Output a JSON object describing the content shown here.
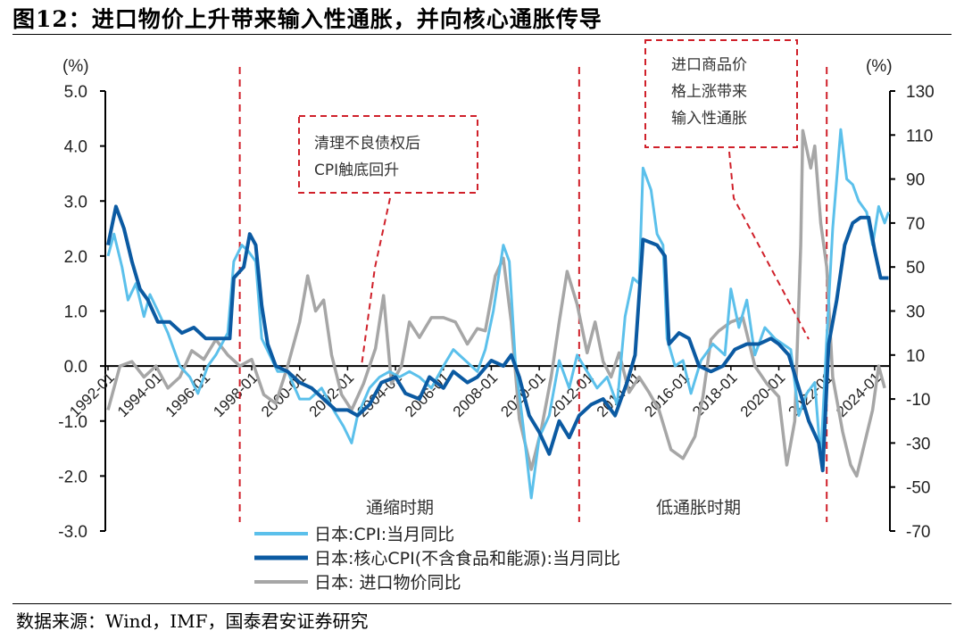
{
  "title": "图12：进口物价上升带来输入性通胀，并向核心通胀传导",
  "source": "数据来源：Wind，IMF，国泰君安证券研究",
  "chart_data": {
    "type": "line",
    "title": "图12：进口物价上升带来输入性通胀，并向核心通胀传导",
    "left_axis": {
      "unit": "(%)",
      "ylim": [
        -3.0,
        5.0
      ],
      "ticks": [
        "5.0",
        "4.0",
        "3.0",
        "2.0",
        "1.0",
        "0.0",
        "-1.0",
        "-2.0",
        "-3.0"
      ]
    },
    "right_axis": {
      "unit": "(%)",
      "ylim": [
        -70,
        130
      ],
      "ticks": [
        "130",
        "110",
        "90",
        "70",
        "50",
        "30",
        "10",
        "-10",
        "-30",
        "-50",
        "-70"
      ]
    },
    "x_ticks": [
      "1992-01",
      "1994-01",
      "1996-01",
      "1998-01",
      "2000-01",
      "2002-01",
      "2004-01",
      "2006-01",
      "2008-01",
      "2010-01",
      "2012-01",
      "2014-01",
      "2016-01",
      "2018-01",
      "2020-01",
      "2022-01",
      "2024-01"
    ],
    "grid": false,
    "legend_position": "bottom",
    "colors": {
      "cpi": "#5bc0eb",
      "core": "#0b5aa2",
      "import": "#a6a6a6",
      "annotation": "#d0202a"
    },
    "series": [
      {
        "name": "日本:CPI:当月同比",
        "axis": "left",
        "color": "#5bc0eb",
        "points": [
          [
            "1992-01",
            2.0
          ],
          [
            "1992-04",
            2.4
          ],
          [
            "1992-08",
            1.8
          ],
          [
            "1992-11",
            1.2
          ],
          [
            "1993-03",
            1.5
          ],
          [
            "1993-07",
            0.9
          ],
          [
            "1993-10",
            1.3
          ],
          [
            "1994-02",
            1.0
          ],
          [
            "1994-07",
            0.6
          ],
          [
            "1994-10",
            0.3
          ],
          [
            "1995-01",
            0.0
          ],
          [
            "1995-06",
            -0.2
          ],
          [
            "1995-10",
            -0.5
          ],
          [
            "1996-03",
            0.0
          ],
          [
            "1996-07",
            0.2
          ],
          [
            "1997-01",
            0.6
          ],
          [
            "1997-04",
            1.9
          ],
          [
            "1997-08",
            2.2
          ],
          [
            "1997-11",
            2.1
          ],
          [
            "1998-03",
            1.9
          ],
          [
            "1998-06",
            0.5
          ],
          [
            "1998-10",
            0.2
          ],
          [
            "1999-02",
            -0.1
          ],
          [
            "1999-07",
            -0.1
          ],
          [
            "2000-01",
            -0.6
          ],
          [
            "2000-06",
            -0.6
          ],
          [
            "2000-12",
            -0.4
          ],
          [
            "2001-06",
            -0.8
          ],
          [
            "2001-11",
            -1.1
          ],
          [
            "2002-03",
            -1.4
          ],
          [
            "2002-06",
            -0.9
          ],
          [
            "2002-12",
            -0.4
          ],
          [
            "2003-05",
            -0.2
          ],
          [
            "2003-10",
            -0.1
          ],
          [
            "2004-03",
            -0.2
          ],
          [
            "2004-08",
            -0.1
          ],
          [
            "2005-01",
            -0.2
          ],
          [
            "2005-07",
            -0.4
          ],
          [
            "2006-01",
            0.0
          ],
          [
            "2006-06",
            0.3
          ],
          [
            "2006-12",
            0.1
          ],
          [
            "2007-06",
            -0.1
          ],
          [
            "2007-10",
            0.3
          ],
          [
            "2008-02",
            1.0
          ],
          [
            "2008-07",
            2.2
          ],
          [
            "2008-10",
            1.9
          ],
          [
            "2009-01",
            0.1
          ],
          [
            "2009-05",
            -1.1
          ],
          [
            "2009-09",
            -2.4
          ],
          [
            "2010-01",
            -1.3
          ],
          [
            "2010-06",
            -0.9
          ],
          [
            "2010-11",
            0.1
          ],
          [
            "2011-04",
            -0.4
          ],
          [
            "2011-08",
            0.2
          ],
          [
            "2012-01",
            -0.1
          ],
          [
            "2012-06",
            -0.4
          ],
          [
            "2012-11",
            -0.2
          ],
          [
            "2013-04",
            -0.7
          ],
          [
            "2013-08",
            0.9
          ],
          [
            "2013-12",
            1.6
          ],
          [
            "2014-03",
            1.5
          ],
          [
            "2014-05",
            3.6
          ],
          [
            "2014-09",
            3.2
          ],
          [
            "2014-12",
            2.4
          ],
          [
            "2015-03",
            2.2
          ],
          [
            "2015-05",
            0.5
          ],
          [
            "2015-09",
            0.0
          ],
          [
            "2016-01",
            0.1
          ],
          [
            "2016-05",
            -0.5
          ],
          [
            "2016-10",
            0.1
          ],
          [
            "2017-04",
            0.4
          ],
          [
            "2017-10",
            0.2
          ],
          [
            "2018-01",
            1.4
          ],
          [
            "2018-05",
            0.7
          ],
          [
            "2018-09",
            1.2
          ],
          [
            "2019-01",
            0.2
          ],
          [
            "2019-06",
            0.7
          ],
          [
            "2019-11",
            0.5
          ],
          [
            "2020-03",
            0.4
          ],
          [
            "2020-07",
            0.3
          ],
          [
            "2020-11",
            -0.9
          ],
          [
            "2021-03",
            -0.5
          ],
          [
            "2021-07",
            -0.3
          ],
          [
            "2021-10",
            -1.7
          ],
          [
            "2022-01",
            0.5
          ],
          [
            "2022-04",
            2.5
          ],
          [
            "2022-08",
            4.3
          ],
          [
            "2022-11",
            3.4
          ],
          [
            "2023-02",
            3.3
          ],
          [
            "2023-05",
            3.0
          ],
          [
            "2023-09",
            2.8
          ],
          [
            "2023-12",
            2.2
          ],
          [
            "2024-03",
            2.9
          ],
          [
            "2024-06",
            2.6
          ],
          [
            "2024-08",
            2.8
          ]
        ]
      },
      {
        "name": "日本:核心CPI(不含食品和能源):当月同比",
        "axis": "left",
        "color": "#0b5aa2",
        "points": [
          [
            "1992-01",
            2.2
          ],
          [
            "1992-05",
            2.9
          ],
          [
            "1992-09",
            2.5
          ],
          [
            "1993-01",
            1.9
          ],
          [
            "1993-05",
            1.4
          ],
          [
            "1993-09",
            1.2
          ],
          [
            "1994-02",
            0.8
          ],
          [
            "1994-08",
            0.8
          ],
          [
            "1995-02",
            0.6
          ],
          [
            "1995-08",
            0.7
          ],
          [
            "1996-02",
            0.5
          ],
          [
            "1996-08",
            0.5
          ],
          [
            "1997-02",
            0.5
          ],
          [
            "1997-04",
            1.6
          ],
          [
            "1997-09",
            1.8
          ],
          [
            "1997-12",
            2.4
          ],
          [
            "1998-03",
            2.2
          ],
          [
            "1998-06",
            1.1
          ],
          [
            "1998-09",
            0.4
          ],
          [
            "1999-01",
            0.0
          ],
          [
            "1999-07",
            -0.1
          ],
          [
            "2000-01",
            -0.3
          ],
          [
            "2000-07",
            -0.4
          ],
          [
            "2001-01",
            -0.6
          ],
          [
            "2001-07",
            -0.8
          ],
          [
            "2002-01",
            -0.8
          ],
          [
            "2002-06",
            -0.9
          ],
          [
            "2002-12",
            -0.7
          ],
          [
            "2003-06",
            -0.3
          ],
          [
            "2004-01",
            -0.2
          ],
          [
            "2004-06",
            -0.5
          ],
          [
            "2005-01",
            -0.6
          ],
          [
            "2005-06",
            -0.2
          ],
          [
            "2006-01",
            -0.4
          ],
          [
            "2006-06",
            -0.1
          ],
          [
            "2007-01",
            -0.3
          ],
          [
            "2007-06",
            -0.2
          ],
          [
            "2008-01",
            0.1
          ],
          [
            "2008-07",
            0.0
          ],
          [
            "2008-11",
            0.2
          ],
          [
            "2009-03",
            -0.2
          ],
          [
            "2009-08",
            -0.9
          ],
          [
            "2010-01",
            -1.2
          ],
          [
            "2010-06",
            -1.6
          ],
          [
            "2010-11",
            -1.0
          ],
          [
            "2011-04",
            -1.3
          ],
          [
            "2011-09",
            -0.9
          ],
          [
            "2012-03",
            -0.7
          ],
          [
            "2012-09",
            -0.6
          ],
          [
            "2013-03",
            -0.9
          ],
          [
            "2013-09",
            -0.3
          ],
          [
            "2014-01",
            0.2
          ],
          [
            "2014-05",
            2.3
          ],
          [
            "2014-12",
            2.2
          ],
          [
            "2015-04",
            2.0
          ],
          [
            "2015-06",
            0.4
          ],
          [
            "2015-11",
            0.6
          ],
          [
            "2016-04",
            0.5
          ],
          [
            "2016-09",
            0.0
          ],
          [
            "2017-03",
            -0.1
          ],
          [
            "2017-09",
            0.0
          ],
          [
            "2018-03",
            0.3
          ],
          [
            "2018-09",
            0.4
          ],
          [
            "2019-03",
            0.4
          ],
          [
            "2019-09",
            0.5
          ],
          [
            "2020-01",
            0.4
          ],
          [
            "2020-06",
            0.2
          ],
          [
            "2020-11",
            -0.4
          ],
          [
            "2021-04",
            -1.0
          ],
          [
            "2021-09",
            -1.4
          ],
          [
            "2021-11",
            -1.9
          ],
          [
            "2022-02",
            0.4
          ],
          [
            "2022-06",
            1.2
          ],
          [
            "2022-10",
            2.2
          ],
          [
            "2023-02",
            2.6
          ],
          [
            "2023-06",
            2.7
          ],
          [
            "2023-10",
            2.7
          ],
          [
            "2024-01",
            2.1
          ],
          [
            "2024-04",
            1.6
          ],
          [
            "2024-08",
            1.6
          ]
        ]
      },
      {
        "name": "日本: 进口物价同比",
        "axis": "right",
        "color": "#a6a6a6",
        "points": [
          [
            "1992-01",
            -15
          ],
          [
            "1992-07",
            5
          ],
          [
            "1993-01",
            7
          ],
          [
            "1993-07",
            0
          ],
          [
            "1994-01",
            5
          ],
          [
            "1994-07",
            -5
          ],
          [
            "1995-01",
            0
          ],
          [
            "1995-07",
            12
          ],
          [
            "1996-01",
            8
          ],
          [
            "1996-07",
            17
          ],
          [
            "1997-01",
            10
          ],
          [
            "1997-07",
            5
          ],
          [
            "1998-01",
            8
          ],
          [
            "1998-07",
            -8
          ],
          [
            "1999-01",
            -12
          ],
          [
            "1999-07",
            5
          ],
          [
            "2000-01",
            25
          ],
          [
            "2000-05",
            46
          ],
          [
            "2000-09",
            30
          ],
          [
            "2001-01",
            35
          ],
          [
            "2001-05",
            10
          ],
          [
            "2001-10",
            -8
          ],
          [
            "2002-03",
            -15
          ],
          [
            "2002-09",
            -3
          ],
          [
            "2003-03",
            13
          ],
          [
            "2003-07",
            37
          ],
          [
            "2003-11",
            -3
          ],
          [
            "2004-04",
            5
          ],
          [
            "2004-08",
            25
          ],
          [
            "2005-01",
            18
          ],
          [
            "2005-07",
            27
          ],
          [
            "2006-01",
            27
          ],
          [
            "2006-07",
            25
          ],
          [
            "2007-01",
            15
          ],
          [
            "2007-06",
            22
          ],
          [
            "2007-10",
            21
          ],
          [
            "2008-03",
            46
          ],
          [
            "2008-07",
            54
          ],
          [
            "2008-11",
            25
          ],
          [
            "2009-03",
            -19
          ],
          [
            "2009-09",
            -42
          ],
          [
            "2010-02",
            -24
          ],
          [
            "2010-07",
            0
          ],
          [
            "2010-11",
            25
          ],
          [
            "2011-03",
            48
          ],
          [
            "2011-08",
            33
          ],
          [
            "2012-01",
            11
          ],
          [
            "2012-05",
            25
          ],
          [
            "2012-09",
            7
          ],
          [
            "2013-01",
            0
          ],
          [
            "2013-05",
            11
          ],
          [
            "2013-10",
            -7
          ],
          [
            "2014-03",
            0
          ],
          [
            "2014-08",
            -7
          ],
          [
            "2015-01",
            -15
          ],
          [
            "2015-07",
            -33
          ],
          [
            "2016-01",
            -37
          ],
          [
            "2016-07",
            -27
          ],
          [
            "2016-11",
            -9
          ],
          [
            "2017-03",
            17
          ],
          [
            "2017-07",
            21
          ],
          [
            "2018-01",
            25
          ],
          [
            "2018-07",
            27
          ],
          [
            "2019-01",
            5
          ],
          [
            "2019-07",
            -3
          ],
          [
            "2020-01",
            -9
          ],
          [
            "2020-05",
            -40
          ],
          [
            "2020-09",
            -20
          ],
          [
            "2020-12",
            60
          ],
          [
            "2021-01",
            112
          ],
          [
            "2021-05",
            95
          ],
          [
            "2021-07",
            105
          ],
          [
            "2021-10",
            70
          ],
          [
            "2022-01",
            50
          ],
          [
            "2022-04",
            0
          ],
          [
            "2022-09",
            -25
          ],
          [
            "2023-01",
            -40
          ],
          [
            "2023-04",
            -45
          ],
          [
            "2023-08",
            -30
          ],
          [
            "2023-12",
            -15
          ],
          [
            "2024-03",
            5
          ],
          [
            "2024-06",
            -5
          ]
        ]
      }
    ],
    "period_dividers": [
      "1997-07",
      "2011-09",
      "2022-01"
    ],
    "annotations": {
      "box1": [
        "清理不良债权后",
        "CPI触底回升"
      ],
      "box2": [
        "进口商品价",
        "格上涨带来",
        "输入性通胀"
      ],
      "period1": "通缩时期",
      "period2": "低通胀时期"
    }
  }
}
